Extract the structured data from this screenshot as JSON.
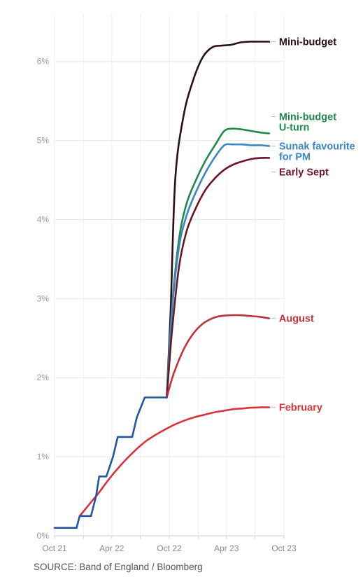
{
  "chart_data": {
    "type": "line",
    "title": "",
    "xlabel": "",
    "ylabel": "",
    "ylim": [
      0,
      6.6
    ],
    "y_ticks": [
      0,
      1,
      2,
      3,
      4,
      5,
      6
    ],
    "y_tick_labels": [
      "0%",
      "1%",
      "2%",
      "3%",
      "4%",
      "5%",
      "6%"
    ],
    "x_ticks": [
      "2021-10-01",
      "2022-01-01",
      "2022-04-01",
      "2022-07-01",
      "2022-10-01",
      "2023-01-01",
      "2023-04-01",
      "2023-07-01",
      "2023-10-01"
    ],
    "x_tick_labels": [
      "Oct 21",
      "",
      "Apr 22",
      "",
      "Oct 22",
      "",
      "Apr 23",
      "",
      "Oct 23"
    ],
    "grid": true,
    "series": [
      {
        "name": "Mini-budget",
        "color": "#2b0f14",
        "label_lines": [
          "Mini-budget"
        ],
        "points": [
          [
            "2022-09-23",
            1.75
          ],
          [
            "2022-10-05",
            2.8
          ],
          [
            "2022-10-20",
            4.5
          ],
          [
            "2022-11-15",
            5.3
          ],
          [
            "2022-12-15",
            5.75
          ],
          [
            "2023-01-15",
            6.05
          ],
          [
            "2023-02-15",
            6.18
          ],
          [
            "2023-03-15",
            6.2
          ],
          [
            "2023-04-15",
            6.21
          ],
          [
            "2023-05-15",
            6.24
          ],
          [
            "2023-06-15",
            6.25
          ],
          [
            "2023-07-15",
            6.25
          ],
          [
            "2023-08-15",
            6.25
          ]
        ]
      },
      {
        "name": "Mini-budget U-turn",
        "color": "#1f8a4d",
        "label_lines": [
          "Mini-budget",
          "U-turn"
        ],
        "points": [
          [
            "2022-09-23",
            1.75
          ],
          [
            "2022-10-10",
            2.9
          ],
          [
            "2022-11-01",
            3.75
          ],
          [
            "2022-11-25",
            4.2
          ],
          [
            "2022-12-25",
            4.5
          ],
          [
            "2023-01-25",
            4.75
          ],
          [
            "2023-02-25",
            4.95
          ],
          [
            "2023-03-25",
            5.12
          ],
          [
            "2023-04-20",
            5.15
          ],
          [
            "2023-05-20",
            5.14
          ],
          [
            "2023-06-20",
            5.12
          ],
          [
            "2023-07-20",
            5.1
          ],
          [
            "2023-08-15",
            5.09
          ]
        ]
      },
      {
        "name": "Sunak favourite for PM",
        "color": "#3a86c0",
        "label_lines": [
          "Sunak favourite",
          "for PM"
        ],
        "points": [
          [
            "2022-09-23",
            1.75
          ],
          [
            "2022-10-10",
            2.85
          ],
          [
            "2022-11-01",
            3.65
          ],
          [
            "2022-11-25",
            4.05
          ],
          [
            "2022-12-25",
            4.35
          ],
          [
            "2023-01-25",
            4.6
          ],
          [
            "2023-02-25",
            4.8
          ],
          [
            "2023-03-25",
            4.94
          ],
          [
            "2023-04-20",
            4.95
          ],
          [
            "2023-05-20",
            4.95
          ],
          [
            "2023-06-20",
            4.94
          ],
          [
            "2023-07-20",
            4.94
          ],
          [
            "2023-08-15",
            4.93
          ]
        ]
      },
      {
        "name": "Early Sept",
        "color": "#6b1626",
        "label_lines": [
          "Early Sept"
        ],
        "points": [
          [
            "2022-09-23",
            1.75
          ],
          [
            "2022-10-10",
            2.6
          ],
          [
            "2022-11-01",
            3.4
          ],
          [
            "2022-11-25",
            3.85
          ],
          [
            "2022-12-25",
            4.15
          ],
          [
            "2023-01-25",
            4.38
          ],
          [
            "2023-02-25",
            4.53
          ],
          [
            "2023-03-25",
            4.63
          ],
          [
            "2023-04-25",
            4.7
          ],
          [
            "2023-05-25",
            4.74
          ],
          [
            "2023-06-25",
            4.77
          ],
          [
            "2023-07-25",
            4.78
          ],
          [
            "2023-08-15",
            4.78
          ]
        ]
      },
      {
        "name": "August",
        "color": "#c0323a",
        "label_lines": [
          "August"
        ],
        "points": [
          [
            "2022-09-23",
            1.75
          ],
          [
            "2022-10-15",
            2.05
          ],
          [
            "2022-11-15",
            2.35
          ],
          [
            "2022-12-15",
            2.55
          ],
          [
            "2023-01-15",
            2.68
          ],
          [
            "2023-02-15",
            2.75
          ],
          [
            "2023-03-15",
            2.78
          ],
          [
            "2023-04-15",
            2.79
          ],
          [
            "2023-05-15",
            2.79
          ],
          [
            "2023-06-15",
            2.78
          ],
          [
            "2023-07-15",
            2.77
          ],
          [
            "2023-08-15",
            2.75
          ]
        ]
      },
      {
        "name": "February",
        "color": "#d9323c",
        "label_lines": [
          "February"
        ],
        "points": [
          [
            "2021-12-20",
            0.25
          ],
          [
            "2022-01-20",
            0.4
          ],
          [
            "2022-02-20",
            0.55
          ],
          [
            "2022-03-20",
            0.7
          ],
          [
            "2022-04-20",
            0.85
          ],
          [
            "2022-05-20",
            0.98
          ],
          [
            "2022-06-20",
            1.1
          ],
          [
            "2022-07-20",
            1.2
          ],
          [
            "2022-08-20",
            1.28
          ],
          [
            "2022-09-20",
            1.35
          ],
          [
            "2022-10-20",
            1.41
          ],
          [
            "2022-11-20",
            1.46
          ],
          [
            "2022-12-20",
            1.5
          ],
          [
            "2023-01-20",
            1.53
          ],
          [
            "2023-02-20",
            1.56
          ],
          [
            "2023-03-20",
            1.58
          ],
          [
            "2023-04-20",
            1.6
          ],
          [
            "2023-05-20",
            1.61
          ],
          [
            "2023-06-20",
            1.62
          ],
          [
            "2023-07-20",
            1.625
          ],
          [
            "2023-08-15",
            1.625
          ]
        ]
      },
      {
        "name": "",
        "color": "#2356a0",
        "label_lines": [],
        "points": [
          [
            "2021-10-01",
            0.1
          ],
          [
            "2021-11-10",
            0.1
          ],
          [
            "2021-12-10",
            0.1
          ],
          [
            "2021-12-20",
            0.25
          ],
          [
            "2022-01-25",
            0.25
          ],
          [
            "2022-02-10",
            0.5
          ],
          [
            "2022-02-20",
            0.75
          ],
          [
            "2022-03-15",
            0.75
          ],
          [
            "2022-04-05",
            1.0
          ],
          [
            "2022-04-20",
            1.25
          ],
          [
            "2022-06-05",
            1.25
          ],
          [
            "2022-06-20",
            1.5
          ],
          [
            "2022-07-15",
            1.75
          ],
          [
            "2022-09-23",
            1.75
          ]
        ]
      }
    ],
    "source": "SOURCE: Band of England / Bloomberg"
  }
}
